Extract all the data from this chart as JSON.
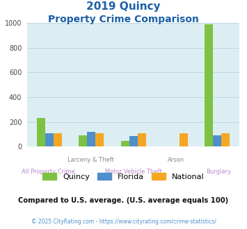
{
  "title_line1": "2019 Quincy",
  "title_line2": "Property Crime Comparison",
  "groups": [
    "All Property Crime",
    "Larceny & Theft",
    "Motor Vehicle Theft",
    "Arson",
    "Burglary"
  ],
  "xlabel_top": [
    "",
    "Larceny & Theft",
    "",
    "Arson",
    ""
  ],
  "xlabel_bottom": [
    "All Property Crime",
    "",
    "Motor Vehicle Theft",
    "",
    "Burglary"
  ],
  "quincy": [
    230,
    90,
    47,
    0,
    990
  ],
  "florida": [
    105,
    118,
    83,
    0,
    90
  ],
  "national": [
    107,
    105,
    107,
    107,
    107
  ],
  "bar_colors": [
    "#7dc242",
    "#4e8fcc",
    "#f5a623"
  ],
  "legend_labels": [
    "Quincy",
    "Florida",
    "National"
  ],
  "ylim": [
    0,
    1000
  ],
  "yticks": [
    0,
    200,
    400,
    600,
    800,
    1000
  ],
  "bg_color": "#ddeef3",
  "title_color": "#1a5ea8",
  "xlabel_color_top": "#888888",
  "xlabel_color_bottom": "#bb88cc",
  "note_text": "Compared to U.S. average. (U.S. average equals 100)",
  "footer_text": "© 2025 CityRating.com - https://www.cityrating.com/crime-statistics/",
  "note_color": "#111111",
  "footer_color": "#4e8fcc",
  "grid_color": "#b8d8e0"
}
